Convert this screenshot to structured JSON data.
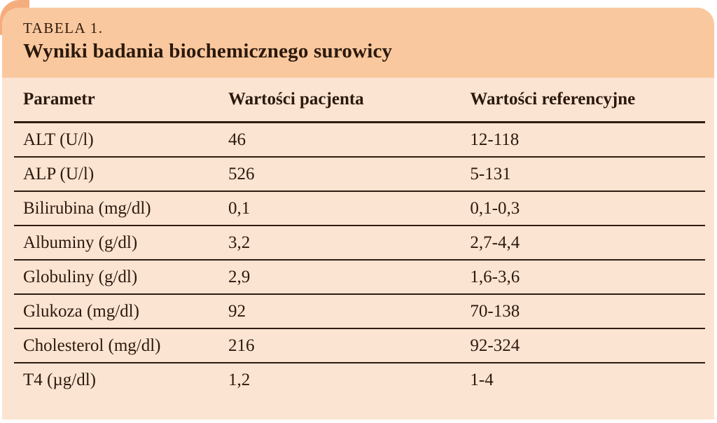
{
  "header": {
    "table_label": "TABELA 1.",
    "title": "Wyniki badania biochemicznego surowicy"
  },
  "colors": {
    "header_band": "#fac89e",
    "table_body": "#fce4d2",
    "corner_accent": "#f5ad7d",
    "text": "#2b190d",
    "rule_line": "#2e1c10",
    "page_background": "#ffffff"
  },
  "table": {
    "columns": [
      "Parametr",
      "Wartości pacjenta",
      "Wartości referencyjne"
    ],
    "rows": [
      {
        "parameter": "ALT (U/l)",
        "patient_value": "46",
        "reference_range": "12-118"
      },
      {
        "parameter": "ALP (U/l)",
        "patient_value": "526",
        "reference_range": "5-131"
      },
      {
        "parameter": "Bilirubina (mg/dl)",
        "patient_value": "0,1",
        "reference_range": "0,1-0,3"
      },
      {
        "parameter": "Albuminy (g/dl)",
        "patient_value": "3,2",
        "reference_range": "2,7-4,4"
      },
      {
        "parameter": "Globuliny (g/dl)",
        "patient_value": "2,9",
        "reference_range": "1,6-3,6"
      },
      {
        "parameter": "Glukoza (mg/dl)",
        "patient_value": "92",
        "reference_range": "70-138"
      },
      {
        "parameter": "Cholesterol (mg/dl)",
        "patient_value": "216",
        "reference_range": "92-324"
      },
      {
        "parameter": "T4 (µg/dl)",
        "patient_value": "1,2",
        "reference_range": "1-4"
      }
    ]
  }
}
